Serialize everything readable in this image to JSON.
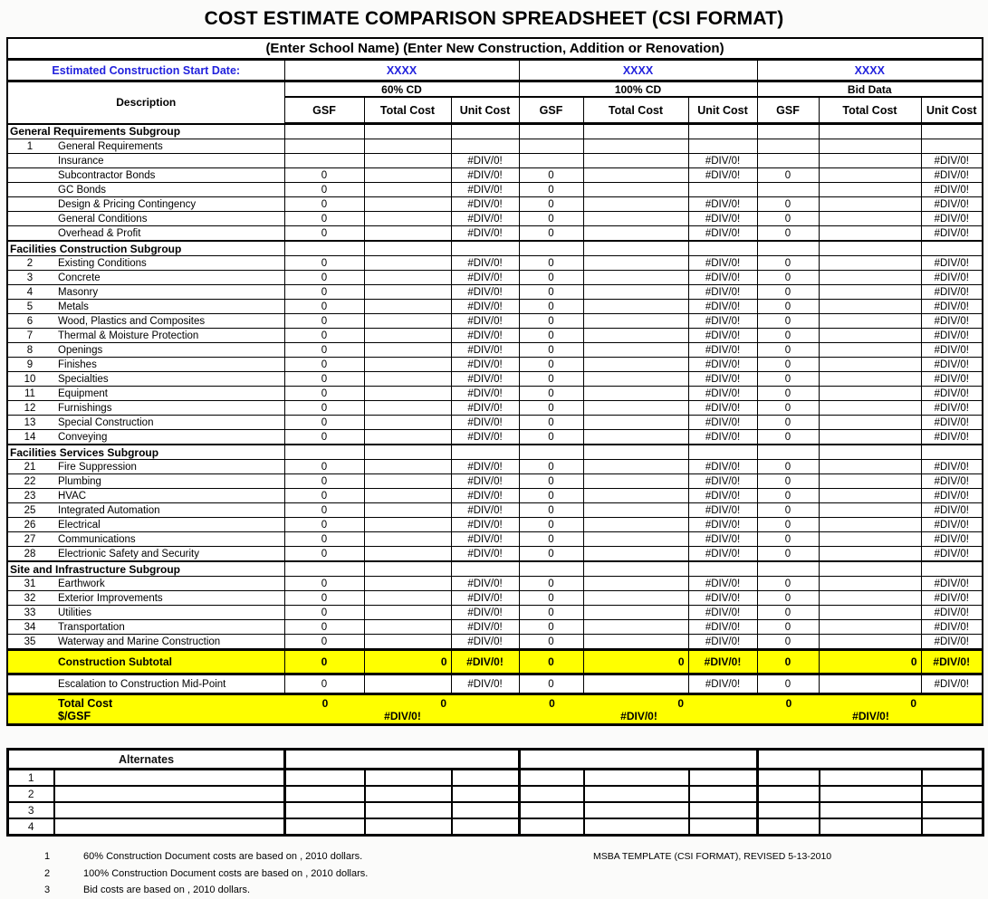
{
  "title": "COST ESTIMATE COMPARISON SPREADSHEET (CSI FORMAT)",
  "colors": {
    "highlight": "#ffff00",
    "accent_blue": "#2222dd"
  },
  "table": {
    "school_header": "(Enter School Name) (Enter New Construction, Addition or Renovation)",
    "start_date_label": "Estimated Construction Start Date:",
    "start_date_values": [
      "XXXX",
      "XXXX",
      "XXXX"
    ],
    "groups": [
      "60% CD",
      "100% CD",
      "Bid Data"
    ],
    "description_header": "Description",
    "sub_headers": [
      "GSF",
      "Total Cost",
      "Unit Cost"
    ],
    "rows": [
      {
        "type": "section",
        "label": "General Requirements Subgroup",
        "cells": [
          "",
          "",
          "",
          "",
          "",
          "",
          "",
          "",
          ""
        ]
      },
      {
        "type": "item",
        "num": "1",
        "label": "General Requirements",
        "cells": [
          "",
          "",
          "",
          "",
          "",
          "",
          "",
          "",
          ""
        ]
      },
      {
        "type": "item",
        "num": "",
        "label": "Insurance",
        "cells": [
          "",
          "",
          "#DIV/0!",
          "",
          "",
          "#DIV/0!",
          "",
          "",
          "#DIV/0!"
        ]
      },
      {
        "type": "item",
        "num": "",
        "label": "Subcontractor Bonds",
        "cells": [
          "0",
          "",
          "#DIV/0!",
          "0",
          "",
          "#DIV/0!",
          "0",
          "",
          "#DIV/0!"
        ]
      },
      {
        "type": "item",
        "num": "",
        "label": "GC Bonds",
        "cells": [
          "0",
          "",
          "#DIV/0!",
          "0",
          "",
          "",
          "",
          "",
          "#DIV/0!"
        ]
      },
      {
        "type": "item",
        "num": "",
        "label": "Design & Pricing Contingency",
        "cells": [
          "0",
          "",
          "#DIV/0!",
          "0",
          "",
          "#DIV/0!",
          "0",
          "",
          "#DIV/0!"
        ]
      },
      {
        "type": "item",
        "num": "",
        "label": "General Conditions",
        "cells": [
          "0",
          "",
          "#DIV/0!",
          "0",
          "",
          "#DIV/0!",
          "0",
          "",
          "#DIV/0!"
        ]
      },
      {
        "type": "item",
        "num": "",
        "label": "Overhead & Profit",
        "cells": [
          "0",
          "",
          "#DIV/0!",
          "0",
          "",
          "#DIV/0!",
          "0",
          "",
          "#DIV/0!"
        ]
      },
      {
        "type": "section",
        "label": "Facilities Construction Subgroup",
        "cells": [
          "",
          "",
          "",
          "",
          "",
          "",
          "",
          "",
          ""
        ]
      },
      {
        "type": "item",
        "num": "2",
        "label": "Existing Conditions",
        "cells": [
          "0",
          "",
          "#DIV/0!",
          "0",
          "",
          "#DIV/0!",
          "0",
          "",
          "#DIV/0!"
        ]
      },
      {
        "type": "item",
        "num": "3",
        "label": "Concrete",
        "cells": [
          "0",
          "",
          "#DIV/0!",
          "0",
          "",
          "#DIV/0!",
          "0",
          "",
          "#DIV/0!"
        ]
      },
      {
        "type": "item",
        "num": "4",
        "label": "Masonry",
        "cells": [
          "0",
          "",
          "#DIV/0!",
          "0",
          "",
          "#DIV/0!",
          "0",
          "",
          "#DIV/0!"
        ]
      },
      {
        "type": "item",
        "num": "5",
        "label": "Metals",
        "cells": [
          "0",
          "",
          "#DIV/0!",
          "0",
          "",
          "#DIV/0!",
          "0",
          "",
          "#DIV/0!"
        ]
      },
      {
        "type": "item",
        "num": "6",
        "label": "Wood, Plastics and Composites",
        "cells": [
          "0",
          "",
          "#DIV/0!",
          "0",
          "",
          "#DIV/0!",
          "0",
          "",
          "#DIV/0!"
        ]
      },
      {
        "type": "item",
        "num": "7",
        "label": "Thermal & Moisture Protection",
        "cells": [
          "0",
          "",
          "#DIV/0!",
          "0",
          "",
          "#DIV/0!",
          "0",
          "",
          "#DIV/0!"
        ]
      },
      {
        "type": "item",
        "num": "8",
        "label": "Openings",
        "cells": [
          "0",
          "",
          "#DIV/0!",
          "0",
          "",
          "#DIV/0!",
          "0",
          "",
          "#DIV/0!"
        ]
      },
      {
        "type": "item",
        "num": "9",
        "label": "Finishes",
        "cells": [
          "0",
          "",
          "#DIV/0!",
          "0",
          "",
          "#DIV/0!",
          "0",
          "",
          "#DIV/0!"
        ]
      },
      {
        "type": "item",
        "num": "10",
        "label": "Specialties",
        "cells": [
          "0",
          "",
          "#DIV/0!",
          "0",
          "",
          "#DIV/0!",
          "0",
          "",
          "#DIV/0!"
        ]
      },
      {
        "type": "item",
        "num": "11",
        "label": "Equipment",
        "cells": [
          "0",
          "",
          "#DIV/0!",
          "0",
          "",
          "#DIV/0!",
          "0",
          "",
          "#DIV/0!"
        ]
      },
      {
        "type": "item",
        "num": "12",
        "label": "Furnishings",
        "cells": [
          "0",
          "",
          "#DIV/0!",
          "0",
          "",
          "#DIV/0!",
          "0",
          "",
          "#DIV/0!"
        ]
      },
      {
        "type": "item",
        "num": "13",
        "label": "Special Construction",
        "cells": [
          "0",
          "",
          "#DIV/0!",
          "0",
          "",
          "#DIV/0!",
          "0",
          "",
          "#DIV/0!"
        ]
      },
      {
        "type": "item",
        "num": "14",
        "label": "Conveying",
        "cells": [
          "0",
          "",
          "#DIV/0!",
          "0",
          "",
          "#DIV/0!",
          "0",
          "",
          "#DIV/0!"
        ]
      },
      {
        "type": "section",
        "label": "Facilities Services Subgroup",
        "cells": [
          "",
          "",
          "",
          "",
          "",
          "",
          "",
          "",
          ""
        ]
      },
      {
        "type": "item",
        "num": "21",
        "label": "Fire Suppression",
        "cells": [
          "0",
          "",
          "#DIV/0!",
          "0",
          "",
          "#DIV/0!",
          "0",
          "",
          "#DIV/0!"
        ]
      },
      {
        "type": "item",
        "num": "22",
        "label": "Plumbing",
        "cells": [
          "0",
          "",
          "#DIV/0!",
          "0",
          "",
          "#DIV/0!",
          "0",
          "",
          "#DIV/0!"
        ]
      },
      {
        "type": "item",
        "num": "23",
        "label": "HVAC",
        "cells": [
          "0",
          "",
          "#DIV/0!",
          "0",
          "",
          "#DIV/0!",
          "0",
          "",
          "#DIV/0!"
        ]
      },
      {
        "type": "item",
        "num": "25",
        "label": "Integrated Automation",
        "cells": [
          "0",
          "",
          "#DIV/0!",
          "0",
          "",
          "#DIV/0!",
          "0",
          "",
          "#DIV/0!"
        ]
      },
      {
        "type": "item",
        "num": "26",
        "label": "Electrical",
        "cells": [
          "0",
          "",
          "#DIV/0!",
          "0",
          "",
          "#DIV/0!",
          "0",
          "",
          "#DIV/0!"
        ]
      },
      {
        "type": "item",
        "num": "27",
        "label": "Communications",
        "cells": [
          "0",
          "",
          "#DIV/0!",
          "0",
          "",
          "#DIV/0!",
          "0",
          "",
          "#DIV/0!"
        ]
      },
      {
        "type": "item",
        "num": "28",
        "label": "Electrionic Safety and Security",
        "cells": [
          "0",
          "",
          "#DIV/0!",
          "0",
          "",
          "#DIV/0!",
          "0",
          "",
          "#DIV/0!"
        ]
      },
      {
        "type": "section",
        "label": "Site and Infrastructure Subgroup",
        "cells": [
          "",
          "",
          "",
          "",
          "",
          "",
          "",
          "",
          ""
        ]
      },
      {
        "type": "item",
        "num": "31",
        "label": "Earthwork",
        "cells": [
          "0",
          "",
          "#DIV/0!",
          "0",
          "",
          "#DIV/0!",
          "0",
          "",
          "#DIV/0!"
        ]
      },
      {
        "type": "item",
        "num": "32",
        "label": "Exterior Improvements",
        "cells": [
          "0",
          "",
          "#DIV/0!",
          "0",
          "",
          "#DIV/0!",
          "0",
          "",
          "#DIV/0!"
        ]
      },
      {
        "type": "item",
        "num": "33",
        "label": "Utilities",
        "cells": [
          "0",
          "",
          "#DIV/0!",
          "0",
          "",
          "#DIV/0!",
          "0",
          "",
          "#DIV/0!"
        ]
      },
      {
        "type": "item",
        "num": "34",
        "label": "Transportation",
        "cells": [
          "0",
          "",
          "#DIV/0!",
          "0",
          "",
          "#DIV/0!",
          "0",
          "",
          "#DIV/0!"
        ]
      },
      {
        "type": "item",
        "num": "35",
        "label": "Waterway and Marine Construction",
        "cells": [
          "0",
          "",
          "#DIV/0!",
          "0",
          "",
          "#DIV/0!",
          "0",
          "",
          "#DIV/0!"
        ]
      }
    ],
    "subtotal": {
      "label": "Construction Subtotal",
      "cells": [
        "0",
        "0",
        "#DIV/0!",
        "0",
        "0",
        "#DIV/0!",
        "0",
        "0",
        "#DIV/0!"
      ]
    },
    "escalation": {
      "label": "Escalation to Construction Mid-Point",
      "cells": [
        "0",
        "",
        "#DIV/0!",
        "0",
        "",
        "#DIV/0!",
        "0",
        "",
        "#DIV/0!"
      ]
    },
    "totals": {
      "total_label": "Total Cost",
      "gsf_label": "$/GSF",
      "groups": [
        {
          "gsf": "0",
          "total": "0",
          "unit": "#DIV/0!"
        },
        {
          "gsf": "0",
          "total": "0",
          "unit": "#DIV/0!"
        },
        {
          "gsf": "0",
          "total": "0",
          "unit": "#DIV/0!"
        }
      ]
    }
  },
  "alternates": {
    "header": "Alternates",
    "rows": [
      {
        "num": "1",
        "label": "",
        "cells": [
          "",
          "",
          "",
          "",
          "",
          "",
          "",
          "",
          ""
        ]
      },
      {
        "num": "2",
        "label": "",
        "cells": [
          "",
          "",
          "",
          "",
          "",
          "",
          "",
          "",
          ""
        ]
      },
      {
        "num": "3",
        "label": "",
        "cells": [
          "",
          "",
          "",
          "",
          "",
          "",
          "",
          "",
          ""
        ]
      },
      {
        "num": "4",
        "label": "",
        "cells": [
          "",
          "",
          "",
          "",
          "",
          "",
          "",
          "",
          ""
        ]
      }
    ]
  },
  "footnotes": [
    {
      "num": "1",
      "text": "60% Construction Document costs are based on  , 2010 dollars."
    },
    {
      "num": "2",
      "text": "100% Construction Document costs are based on  , 2010 dollars."
    },
    {
      "num": "3",
      "text": "Bid costs are based on  , 2010 dollars."
    }
  ],
  "revision_note": "MSBA TEMPLATE (CSI FORMAT), REVISED  5-13-2010"
}
